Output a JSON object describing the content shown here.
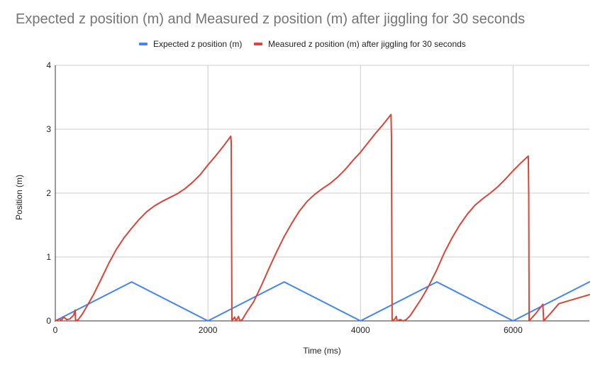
{
  "chart_data": {
    "type": "line",
    "title": "Expected z position (m) and Measured z position (m) after jiggling for 30 seconds",
    "xlabel": "Time (ms)",
    "ylabel": "Position (m)",
    "xlim": [
      0,
      7000
    ],
    "ylim": [
      0,
      4
    ],
    "x_ticks": [
      0,
      2000,
      4000,
      6000
    ],
    "y_ticks": [
      0,
      1,
      2,
      3,
      4
    ],
    "grid": true,
    "legend_position": "top",
    "series": [
      {
        "name": "Expected z position (m)",
        "color": "#4285f4",
        "points": [
          [
            0,
            0
          ],
          [
            1000,
            0.61
          ],
          [
            2000,
            0
          ],
          [
            3000,
            0.61
          ],
          [
            4000,
            0
          ],
          [
            5000,
            0.61
          ],
          [
            6000,
            0
          ],
          [
            7000,
            0.61
          ]
        ]
      },
      {
        "name": "Measured z position (m) after jiggling for 30 seconds",
        "color": "#db4437",
        "points": [
          [
            0,
            0
          ],
          [
            50,
            0.03
          ],
          [
            80,
            0.01
          ],
          [
            110,
            0.06
          ],
          [
            150,
            0.02
          ],
          [
            190,
            0.03
          ],
          [
            240,
            0.09
          ],
          [
            260,
            0.17
          ],
          [
            265,
            0
          ],
          [
            300,
            0.02
          ],
          [
            350,
            0.1
          ],
          [
            400,
            0.2
          ],
          [
            500,
            0.41
          ],
          [
            600,
            0.65
          ],
          [
            700,
            0.9
          ],
          [
            800,
            1.12
          ],
          [
            900,
            1.3
          ],
          [
            1000,
            1.45
          ],
          [
            1100,
            1.59
          ],
          [
            1200,
            1.71
          ],
          [
            1300,
            1.8
          ],
          [
            1400,
            1.87
          ],
          [
            1500,
            1.93
          ],
          [
            1600,
            1.99
          ],
          [
            1700,
            2.07
          ],
          [
            1800,
            2.17
          ],
          [
            1900,
            2.29
          ],
          [
            2000,
            2.44
          ],
          [
            2100,
            2.58
          ],
          [
            2200,
            2.73
          ],
          [
            2300,
            2.89
          ],
          [
            2305,
            2.8
          ],
          [
            2310,
            1.35
          ],
          [
            2315,
            0
          ],
          [
            2350,
            0.06
          ],
          [
            2370,
            0
          ],
          [
            2400,
            0.07
          ],
          [
            2420,
            0
          ],
          [
            2450,
            0.02
          ],
          [
            2500,
            0.12
          ],
          [
            2600,
            0.3
          ],
          [
            2700,
            0.55
          ],
          [
            2800,
            0.82
          ],
          [
            2900,
            1.08
          ],
          [
            3000,
            1.32
          ],
          [
            3100,
            1.53
          ],
          [
            3200,
            1.72
          ],
          [
            3300,
            1.87
          ],
          [
            3400,
            1.98
          ],
          [
            3500,
            2.07
          ],
          [
            3600,
            2.15
          ],
          [
            3700,
            2.25
          ],
          [
            3800,
            2.37
          ],
          [
            3900,
            2.51
          ],
          [
            4000,
            2.64
          ],
          [
            4100,
            2.79
          ],
          [
            4200,
            2.94
          ],
          [
            4300,
            3.08
          ],
          [
            4400,
            3.23
          ],
          [
            4405,
            2.9
          ],
          [
            4410,
            1.35
          ],
          [
            4415,
            0
          ],
          [
            4450,
            0.03
          ],
          [
            4470,
            0.07
          ],
          [
            4480,
            0
          ],
          [
            4520,
            0.02
          ],
          [
            4560,
            0
          ],
          [
            4600,
            0.02
          ],
          [
            4650,
            0.08
          ],
          [
            4700,
            0.17
          ],
          [
            4800,
            0.35
          ],
          [
            4900,
            0.56
          ],
          [
            5000,
            0.8
          ],
          [
            5100,
            1.07
          ],
          [
            5200,
            1.3
          ],
          [
            5300,
            1.5
          ],
          [
            5400,
            1.67
          ],
          [
            5500,
            1.81
          ],
          [
            5600,
            1.91
          ],
          [
            5700,
            2.0
          ],
          [
            5800,
            2.1
          ],
          [
            5900,
            2.22
          ],
          [
            6000,
            2.35
          ],
          [
            6100,
            2.47
          ],
          [
            6200,
            2.58
          ],
          [
            6205,
            1.95
          ],
          [
            6210,
            0
          ],
          [
            6300,
            0.12
          ],
          [
            6390,
            0.26
          ],
          [
            6400,
            0
          ],
          [
            6500,
            0.13
          ],
          [
            6600,
            0.27
          ],
          [
            7000,
            0.41
          ]
        ]
      }
    ]
  }
}
